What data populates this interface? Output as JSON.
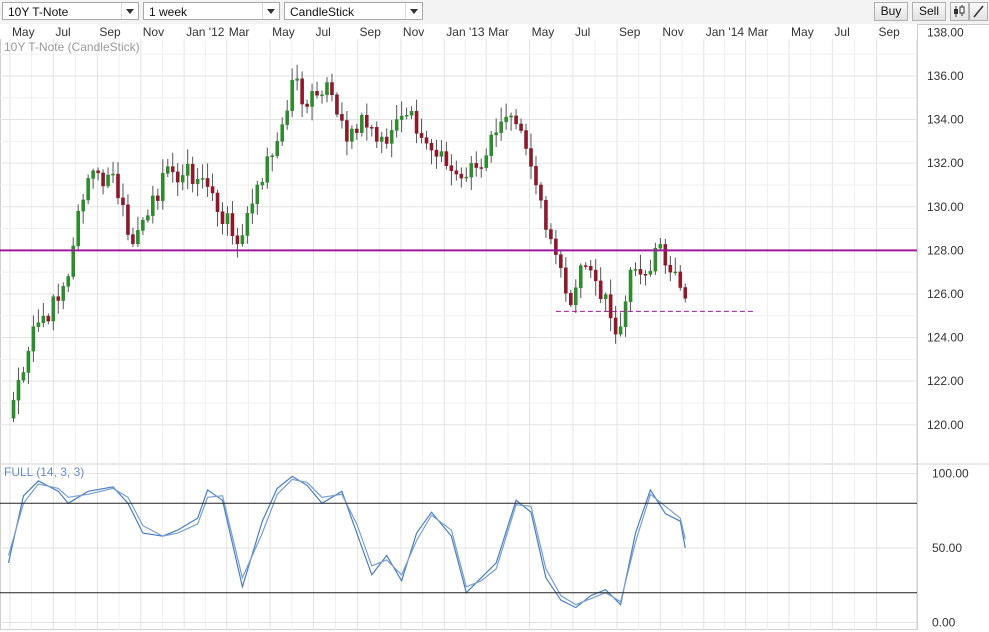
{
  "toolbar": {
    "instrument": "10Y T-Note",
    "period": "1 week",
    "chart_style": "CandleStick",
    "buy_label": "Buy",
    "sell_label": "Sell",
    "icons": [
      "candlestick-icon",
      "draw-line-icon"
    ]
  },
  "colors": {
    "up": "#2e8b2e",
    "down": "#8b1a2b",
    "resistance": "#a0199b",
    "stoch_k": "#4a7ec2",
    "stoch_d": "#7a9ed0",
    "grid": "#e3e3e3"
  },
  "chart_data": [
    {
      "type": "candlestick",
      "title": "10Y T-Note (CandleStick)",
      "xaxis_ticks": [
        "May",
        "Jul",
        "Sep",
        "Nov",
        "Jan '12",
        "Mar",
        "May",
        "Jul",
        "Sep",
        "Nov",
        "Jan '13",
        "Mar",
        "May",
        "Jul",
        "Sep",
        "Nov",
        "Jan '14",
        "Mar",
        "May",
        "Jul",
        "Sep"
      ],
      "yaxis_ticks": [
        "120.00",
        "122.00",
        "124.00",
        "126.00",
        "128.00",
        "130.00",
        "132.00",
        "134.00",
        "136.00",
        "138.00"
      ],
      "ylim": [
        118.2,
        138.2
      ],
      "grid": true,
      "horizontal_line": {
        "value": 128.0,
        "style": "solid"
      },
      "support_line": {
        "value": 125.2,
        "style": "dashed"
      },
      "keypoints": [
        {
          "x": "2011-04-29",
          "close": 120.3
        },
        {
          "x": "2011-06-03",
          "close": 124.5
        },
        {
          "x": "2011-07-08",
          "close": 125.7
        },
        {
          "x": "2011-07-22",
          "close": 126.8
        },
        {
          "x": "2011-08-05",
          "close": 129.8
        },
        {
          "x": "2011-08-19",
          "close": 131.3
        },
        {
          "x": "2011-09-23",
          "close": 131.5
        },
        {
          "x": "2011-10-21",
          "close": 128.3
        },
        {
          "x": "2011-11-18",
          "close": 130.5
        },
        {
          "x": "2011-12-16",
          "close": 131.6
        },
        {
          "x": "2012-01-27",
          "close": 131.3
        },
        {
          "x": "2012-03-16",
          "close": 128.3
        },
        {
          "x": "2012-04-13",
          "close": 131.0
        },
        {
          "x": "2012-05-11",
          "close": 133.0
        },
        {
          "x": "2012-06-01",
          "close": 135.8
        },
        {
          "x": "2012-06-22",
          "close": 134.6
        },
        {
          "x": "2012-07-20",
          "close": 135.7
        },
        {
          "x": "2012-08-17",
          "close": 133.0
        },
        {
          "x": "2012-09-07",
          "close": 134.2
        },
        {
          "x": "2012-10-05",
          "close": 133.2
        },
        {
          "x": "2012-11-09",
          "close": 134.2
        },
        {
          "x": "2012-12-14",
          "close": 132.6
        },
        {
          "x": "2013-01-18",
          "close": 131.5
        },
        {
          "x": "2013-02-15",
          "close": 131.8
        },
        {
          "x": "2013-03-15",
          "close": 133.4
        },
        {
          "x": "2013-04-12",
          "close": 133.8
        },
        {
          "x": "2013-05-10",
          "close": 131.0
        },
        {
          "x": "2013-06-14",
          "close": 127.2
        },
        {
          "x": "2013-06-28",
          "close": 125.5
        },
        {
          "x": "2013-07-12",
          "close": 127.3
        },
        {
          "x": "2013-08-02",
          "close": 126.6
        },
        {
          "x": "2013-08-23",
          "close": 124.9
        },
        {
          "x": "2013-09-06",
          "close": 124.5
        },
        {
          "x": "2013-09-20",
          "close": 127.1
        },
        {
          "x": "2013-10-11",
          "close": 126.9
        },
        {
          "x": "2013-10-25",
          "close": 128.1
        },
        {
          "x": "2013-11-15",
          "close": 127.0
        },
        {
          "x": "2013-12-06",
          "close": 125.8
        }
      ],
      "low_points": [
        {
          "x": "2013-09-06",
          "low": 123.6
        }
      ],
      "high_points": [
        {
          "x": "2012-07-20",
          "high": 135.9
        },
        {
          "x": "2013-10-25",
          "high": 128.6
        }
      ]
    },
    {
      "type": "line",
      "title": "FULL (14, 3, 3)",
      "yaxis_ticks": [
        "0.00",
        "50.00",
        "100.00"
      ],
      "ylim": [
        -5,
        105
      ],
      "horizontal_lines": [
        80,
        20
      ],
      "series": [
        {
          "role": "%K",
          "points": [
            {
              "x": "2011-04-29",
              "y": 40
            },
            {
              "x": "2011-05-20",
              "y": 85
            },
            {
              "x": "2011-06-10",
              "y": 95
            },
            {
              "x": "2011-07-08",
              "y": 88
            },
            {
              "x": "2011-07-22",
              "y": 80
            },
            {
              "x": "2011-08-19",
              "y": 88
            },
            {
              "x": "2011-09-23",
              "y": 91
            },
            {
              "x": "2011-10-14",
              "y": 80
            },
            {
              "x": "2011-11-04",
              "y": 60
            },
            {
              "x": "2011-12-02",
              "y": 58
            },
            {
              "x": "2011-12-23",
              "y": 62
            },
            {
              "x": "2012-01-20",
              "y": 70
            },
            {
              "x": "2012-02-03",
              "y": 89
            },
            {
              "x": "2012-02-24",
              "y": 82
            },
            {
              "x": "2012-03-23",
              "y": 24
            },
            {
              "x": "2012-04-20",
              "y": 68
            },
            {
              "x": "2012-05-11",
              "y": 90
            },
            {
              "x": "2012-06-01",
              "y": 98
            },
            {
              "x": "2012-06-22",
              "y": 92
            },
            {
              "x": "2012-07-13",
              "y": 80
            },
            {
              "x": "2012-08-10",
              "y": 88
            },
            {
              "x": "2012-08-31",
              "y": 60
            },
            {
              "x": "2012-09-21",
              "y": 32
            },
            {
              "x": "2012-10-12",
              "y": 45
            },
            {
              "x": "2012-11-02",
              "y": 28
            },
            {
              "x": "2012-11-23",
              "y": 60
            },
            {
              "x": "2012-12-14",
              "y": 74
            },
            {
              "x": "2013-01-11",
              "y": 58
            },
            {
              "x": "2013-02-01",
              "y": 20
            },
            {
              "x": "2013-02-22",
              "y": 30
            },
            {
              "x": "2013-03-15",
              "y": 40
            },
            {
              "x": "2013-04-12",
              "y": 82
            },
            {
              "x": "2013-05-03",
              "y": 74
            },
            {
              "x": "2013-05-24",
              "y": 30
            },
            {
              "x": "2013-06-14",
              "y": 15
            },
            {
              "x": "2013-07-05",
              "y": 10
            },
            {
              "x": "2013-07-26",
              "y": 18
            },
            {
              "x": "2013-08-16",
              "y": 22
            },
            {
              "x": "2013-09-06",
              "y": 12
            },
            {
              "x": "2013-09-27",
              "y": 60
            },
            {
              "x": "2013-10-18",
              "y": 89
            },
            {
              "x": "2013-11-08",
              "y": 73
            },
            {
              "x": "2013-11-29",
              "y": 68
            },
            {
              "x": "2013-12-06",
              "y": 50
            }
          ]
        },
        {
          "role": "%D",
          "points": [
            {
              "x": "2011-04-29",
              "y": 45
            },
            {
              "x": "2011-05-20",
              "y": 80
            },
            {
              "x": "2011-06-10",
              "y": 93
            },
            {
              "x": "2011-07-08",
              "y": 90
            },
            {
              "x": "2011-07-22",
              "y": 84
            },
            {
              "x": "2011-08-19",
              "y": 86
            },
            {
              "x": "2011-09-23",
              "y": 90
            },
            {
              "x": "2011-10-14",
              "y": 84
            },
            {
              "x": "2011-11-04",
              "y": 65
            },
            {
              "x": "2011-12-02",
              "y": 58
            },
            {
              "x": "2011-12-23",
              "y": 60
            },
            {
              "x": "2012-01-20",
              "y": 66
            },
            {
              "x": "2012-02-03",
              "y": 84
            },
            {
              "x": "2012-02-24",
              "y": 85
            },
            {
              "x": "2012-03-23",
              "y": 30
            },
            {
              "x": "2012-04-20",
              "y": 60
            },
            {
              "x": "2012-05-11",
              "y": 86
            },
            {
              "x": "2012-06-01",
              "y": 96
            },
            {
              "x": "2012-06-22",
              "y": 94
            },
            {
              "x": "2012-07-13",
              "y": 84
            },
            {
              "x": "2012-08-10",
              "y": 86
            },
            {
              "x": "2012-08-31",
              "y": 66
            },
            {
              "x": "2012-09-21",
              "y": 38
            },
            {
              "x": "2012-10-12",
              "y": 42
            },
            {
              "x": "2012-11-02",
              "y": 32
            },
            {
              "x": "2012-11-23",
              "y": 55
            },
            {
              "x": "2012-12-14",
              "y": 72
            },
            {
              "x": "2013-01-11",
              "y": 62
            },
            {
              "x": "2013-02-01",
              "y": 24
            },
            {
              "x": "2013-02-22",
              "y": 28
            },
            {
              "x": "2013-03-15",
              "y": 36
            },
            {
              "x": "2013-04-12",
              "y": 79
            },
            {
              "x": "2013-05-03",
              "y": 78
            },
            {
              "x": "2013-05-24",
              "y": 36
            },
            {
              "x": "2013-06-14",
              "y": 18
            },
            {
              "x": "2013-07-05",
              "y": 12
            },
            {
              "x": "2013-07-26",
              "y": 16
            },
            {
              "x": "2013-08-16",
              "y": 20
            },
            {
              "x": "2013-09-06",
              "y": 14
            },
            {
              "x": "2013-09-27",
              "y": 54
            },
            {
              "x": "2013-10-18",
              "y": 86
            },
            {
              "x": "2013-11-08",
              "y": 78
            },
            {
              "x": "2013-11-29",
              "y": 70
            },
            {
              "x": "2013-12-06",
              "y": 56
            }
          ]
        }
      ]
    }
  ]
}
